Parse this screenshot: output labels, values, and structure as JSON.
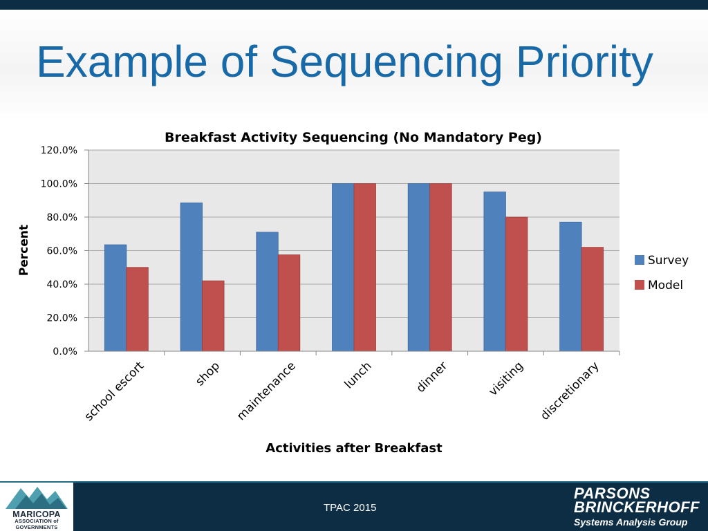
{
  "slide": {
    "title": "Example of Sequencing Priority",
    "footer_text": "TPAC 2015",
    "left_logo": {
      "line1": "MARICOPA",
      "line2": "ASSOCIATION of",
      "line3": "GOVERNMENTS"
    },
    "right_logo": {
      "line1": "PARSONS",
      "line2": "BRINCKERHOFF",
      "line3": "Systems Analysis Group"
    },
    "colors": {
      "title": "#1769a8",
      "footer_bg": "#0d2d44"
    }
  },
  "chart_data": {
    "type": "bar",
    "title": "Breakfast Activity Sequencing (No Mandatory Peg)",
    "xlabel": "Activities after Breakfast",
    "ylabel": "Percent",
    "ylim": [
      0,
      120
    ],
    "yticks": [
      "0.0%",
      "20.0%",
      "40.0%",
      "60.0%",
      "80.0%",
      "100.0%",
      "120.0%"
    ],
    "grid": true,
    "legend_position": "right",
    "categories": [
      "school escort",
      "shop",
      "maintenance",
      "lunch",
      "dinner",
      "visiting",
      "discretionary"
    ],
    "series": [
      {
        "name": "Survey",
        "color": "#4f81bd",
        "values": [
          63.5,
          88.5,
          71,
          100,
          100,
          95,
          77
        ]
      },
      {
        "name": "Model",
        "color": "#c0504d",
        "values": [
          50,
          42,
          57.5,
          100,
          100,
          80,
          62
        ]
      }
    ]
  }
}
